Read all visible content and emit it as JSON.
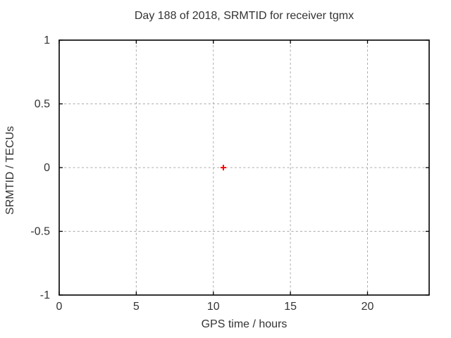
{
  "window": {
    "background": "#ffffff"
  },
  "chart_data": {
    "type": "scatter",
    "title": "Day 188 of 2018, SRMTID for receiver tgmx",
    "xlabel": "GPS time / hours",
    "ylabel": "SRMTID / TECUs",
    "xlim": [
      0,
      24
    ],
    "ylim": [
      -1,
      1
    ],
    "xticks": {
      "values": [
        0,
        5,
        10,
        15,
        20
      ],
      "labels": [
        "0",
        "5",
        "10",
        "15",
        "20"
      ]
    },
    "yticks": {
      "values": [
        -1,
        -0.5,
        0,
        0.5,
        1
      ],
      "labels": [
        "-1",
        "-0.5",
        "0",
        "0.5",
        "1"
      ]
    },
    "grid": true,
    "legend": "none",
    "colors": {
      "axis": "#000000",
      "grid": "#ababab",
      "text": "#333333",
      "background": "#ffffff"
    },
    "series": [
      {
        "name": "SRMTID",
        "marker": "plus",
        "marker_size": 8,
        "color": "#ff0000",
        "points": [
          {
            "x": 10.65,
            "y": 0.0
          }
        ]
      }
    ]
  }
}
